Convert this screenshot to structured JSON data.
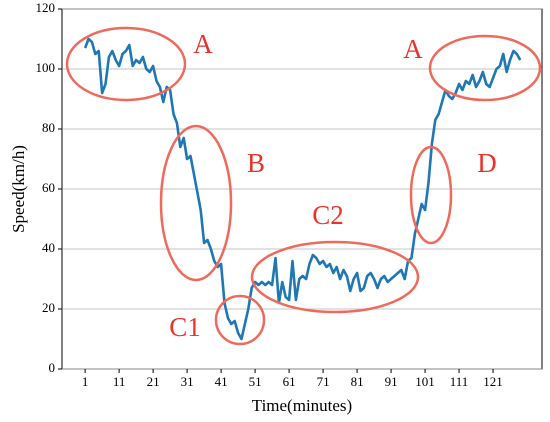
{
  "chart_data": {
    "type": "line",
    "xlabel": "Time(minutes)",
    "ylabel": "Speed(km/h)",
    "xlim": [
      -5.8,
      135.4
    ],
    "ylim": [
      0,
      120
    ],
    "xticks": [
      1,
      11,
      21,
      31,
      41,
      51,
      61,
      71,
      81,
      91,
      101,
      111,
      121
    ],
    "yticks": [
      0,
      20,
      40,
      60,
      80,
      100,
      120
    ],
    "grid": true,
    "annotations": [
      "A",
      "B",
      "C1",
      "C2",
      "A",
      "D"
    ],
    "x": [
      1,
      2,
      3,
      4,
      5,
      6,
      7,
      8,
      9,
      10,
      11,
      12,
      13,
      14,
      15,
      16,
      17,
      18,
      19,
      20,
      21,
      22,
      23,
      24,
      25,
      26,
      27,
      28,
      29,
      30,
      31,
      32,
      33,
      34,
      35,
      36,
      37,
      38,
      39,
      40,
      41,
      42,
      43,
      44,
      45,
      46,
      47,
      48,
      49,
      50,
      51,
      52,
      53,
      54,
      55,
      56,
      57,
      58,
      59,
      60,
      61,
      62,
      63,
      64,
      65,
      66,
      67,
      68,
      69,
      70,
      71,
      72,
      73,
      74,
      75,
      76,
      77,
      78,
      79,
      80,
      81,
      82,
      83,
      84,
      85,
      86,
      87,
      88,
      89,
      90,
      91,
      92,
      93,
      94,
      95,
      96,
      97,
      98,
      99,
      100,
      101,
      102,
      103,
      104,
      105,
      106,
      107,
      108,
      109,
      110,
      111,
      112,
      113,
      114,
      115,
      116,
      117,
      118,
      119,
      120,
      121,
      122,
      123,
      124,
      125,
      126,
      127,
      128,
      129
    ],
    "series": [
      {
        "color": "#1f77b4",
        "values": [
          107,
          110,
          109,
          105,
          106,
          92,
          95,
          104,
          106,
          103,
          101,
          105,
          106,
          108,
          101,
          103,
          102,
          104,
          100,
          99,
          101,
          96,
          94,
          89,
          94,
          93,
          85,
          82,
          74,
          77,
          70,
          71,
          65,
          59,
          53,
          42,
          43,
          40,
          36,
          34,
          35,
          22,
          17,
          15,
          16,
          12,
          10,
          15,
          20,
          27,
          29,
          28,
          29,
          28,
          29,
          28,
          37,
          22,
          29,
          24,
          23,
          36,
          23,
          30,
          31,
          30,
          35,
          38,
          37,
          35,
          36,
          34,
          35,
          32,
          34,
          30,
          33,
          31,
          26,
          30,
          32,
          26,
          27,
          31,
          32,
          30,
          27,
          30,
          31,
          29,
          30,
          31,
          32,
          33,
          30,
          36,
          37,
          45,
          50,
          55,
          53,
          62,
          75,
          83,
          85,
          89,
          93,
          91,
          90,
          92,
          95,
          93,
          96,
          95,
          98,
          94,
          96,
          99,
          95,
          94,
          97,
          100,
          101,
          105,
          99,
          103,
          106,
          105,
          103
        ]
      }
    ]
  }
}
